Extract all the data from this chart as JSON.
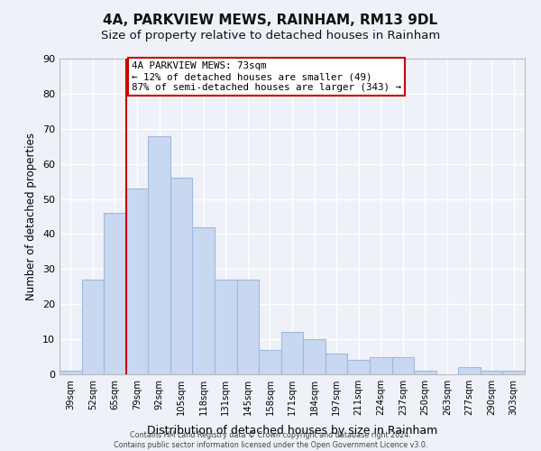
{
  "title": "4A, PARKVIEW MEWS, RAINHAM, RM13 9DL",
  "subtitle": "Size of property relative to detached houses in Rainham",
  "xlabel": "Distribution of detached houses by size in Rainham",
  "ylabel": "Number of detached properties",
  "bar_labels": [
    "39sqm",
    "52sqm",
    "65sqm",
    "79sqm",
    "92sqm",
    "105sqm",
    "118sqm",
    "131sqm",
    "145sqm",
    "158sqm",
    "171sqm",
    "184sqm",
    "197sqm",
    "211sqm",
    "224sqm",
    "237sqm",
    "250sqm",
    "263sqm",
    "277sqm",
    "290sqm",
    "303sqm"
  ],
  "bar_values": [
    1,
    27,
    46,
    53,
    68,
    56,
    42,
    27,
    27,
    7,
    12,
    10,
    6,
    4,
    5,
    5,
    1,
    0,
    2,
    1,
    1
  ],
  "bar_color": "#c8d8f0",
  "bar_edge_color": "#a0b8e0",
  "vline_x": 3,
  "vline_color": "#cc0000",
  "ylim": [
    0,
    90
  ],
  "yticks": [
    0,
    10,
    20,
    30,
    40,
    50,
    60,
    70,
    80,
    90
  ],
  "annotation_title": "4A PARKVIEW MEWS: 73sqm",
  "annotation_line1": "← 12% of detached houses are smaller (49)",
  "annotation_line2": "87% of semi-detached houses are larger (343) →",
  "annotation_box_color": "#ffffff",
  "annotation_box_edge": "#cc0000",
  "footer_line1": "Contains HM Land Registry data © Crown copyright and database right 2024.",
  "footer_line2": "Contains public sector information licensed under the Open Government Licence v3.0.",
  "background_color": "#eef2f8",
  "grid_color": "#ffffff",
  "title_fontsize": 11,
  "subtitle_fontsize": 9.5
}
